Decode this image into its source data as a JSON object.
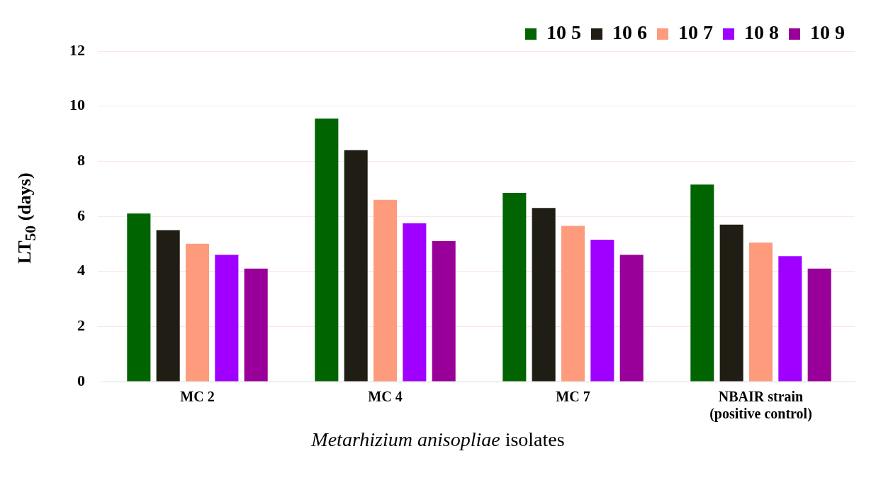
{
  "chart_data": {
    "type": "bar",
    "xlabel": "Metarhizium anisopliae isolates",
    "ylabel": "LT$_{50}$ (days)",
    "categories": [
      "MC 2",
      "MC 4",
      "MC 7",
      "NBAIR strain (positive control)"
    ],
    "series": [
      {
        "name": "10 5",
        "color": "#006400",
        "values": [
          6.1,
          9.55,
          6.85,
          7.15
        ]
      },
      {
        "name": "10 6",
        "color": "#201d14",
        "values": [
          5.5,
          8.4,
          6.3,
          5.7
        ]
      },
      {
        "name": "10 7",
        "color": "#ff9b7d",
        "values": [
          5.0,
          6.6,
          5.65,
          5.05
        ]
      },
      {
        "name": "10 8",
        "color": "#9f00ff",
        "values": [
          4.6,
          5.75,
          5.15,
          4.55
        ]
      },
      {
        "name": "10 9",
        "color": "#990099",
        "values": [
          4.1,
          5.1,
          4.6,
          4.1
        ]
      }
    ],
    "ylim": [
      0,
      12
    ],
    "yticks": [
      0,
      2,
      4,
      6,
      8,
      10,
      12
    ],
    "grid": "y",
    "legend": "top right"
  }
}
